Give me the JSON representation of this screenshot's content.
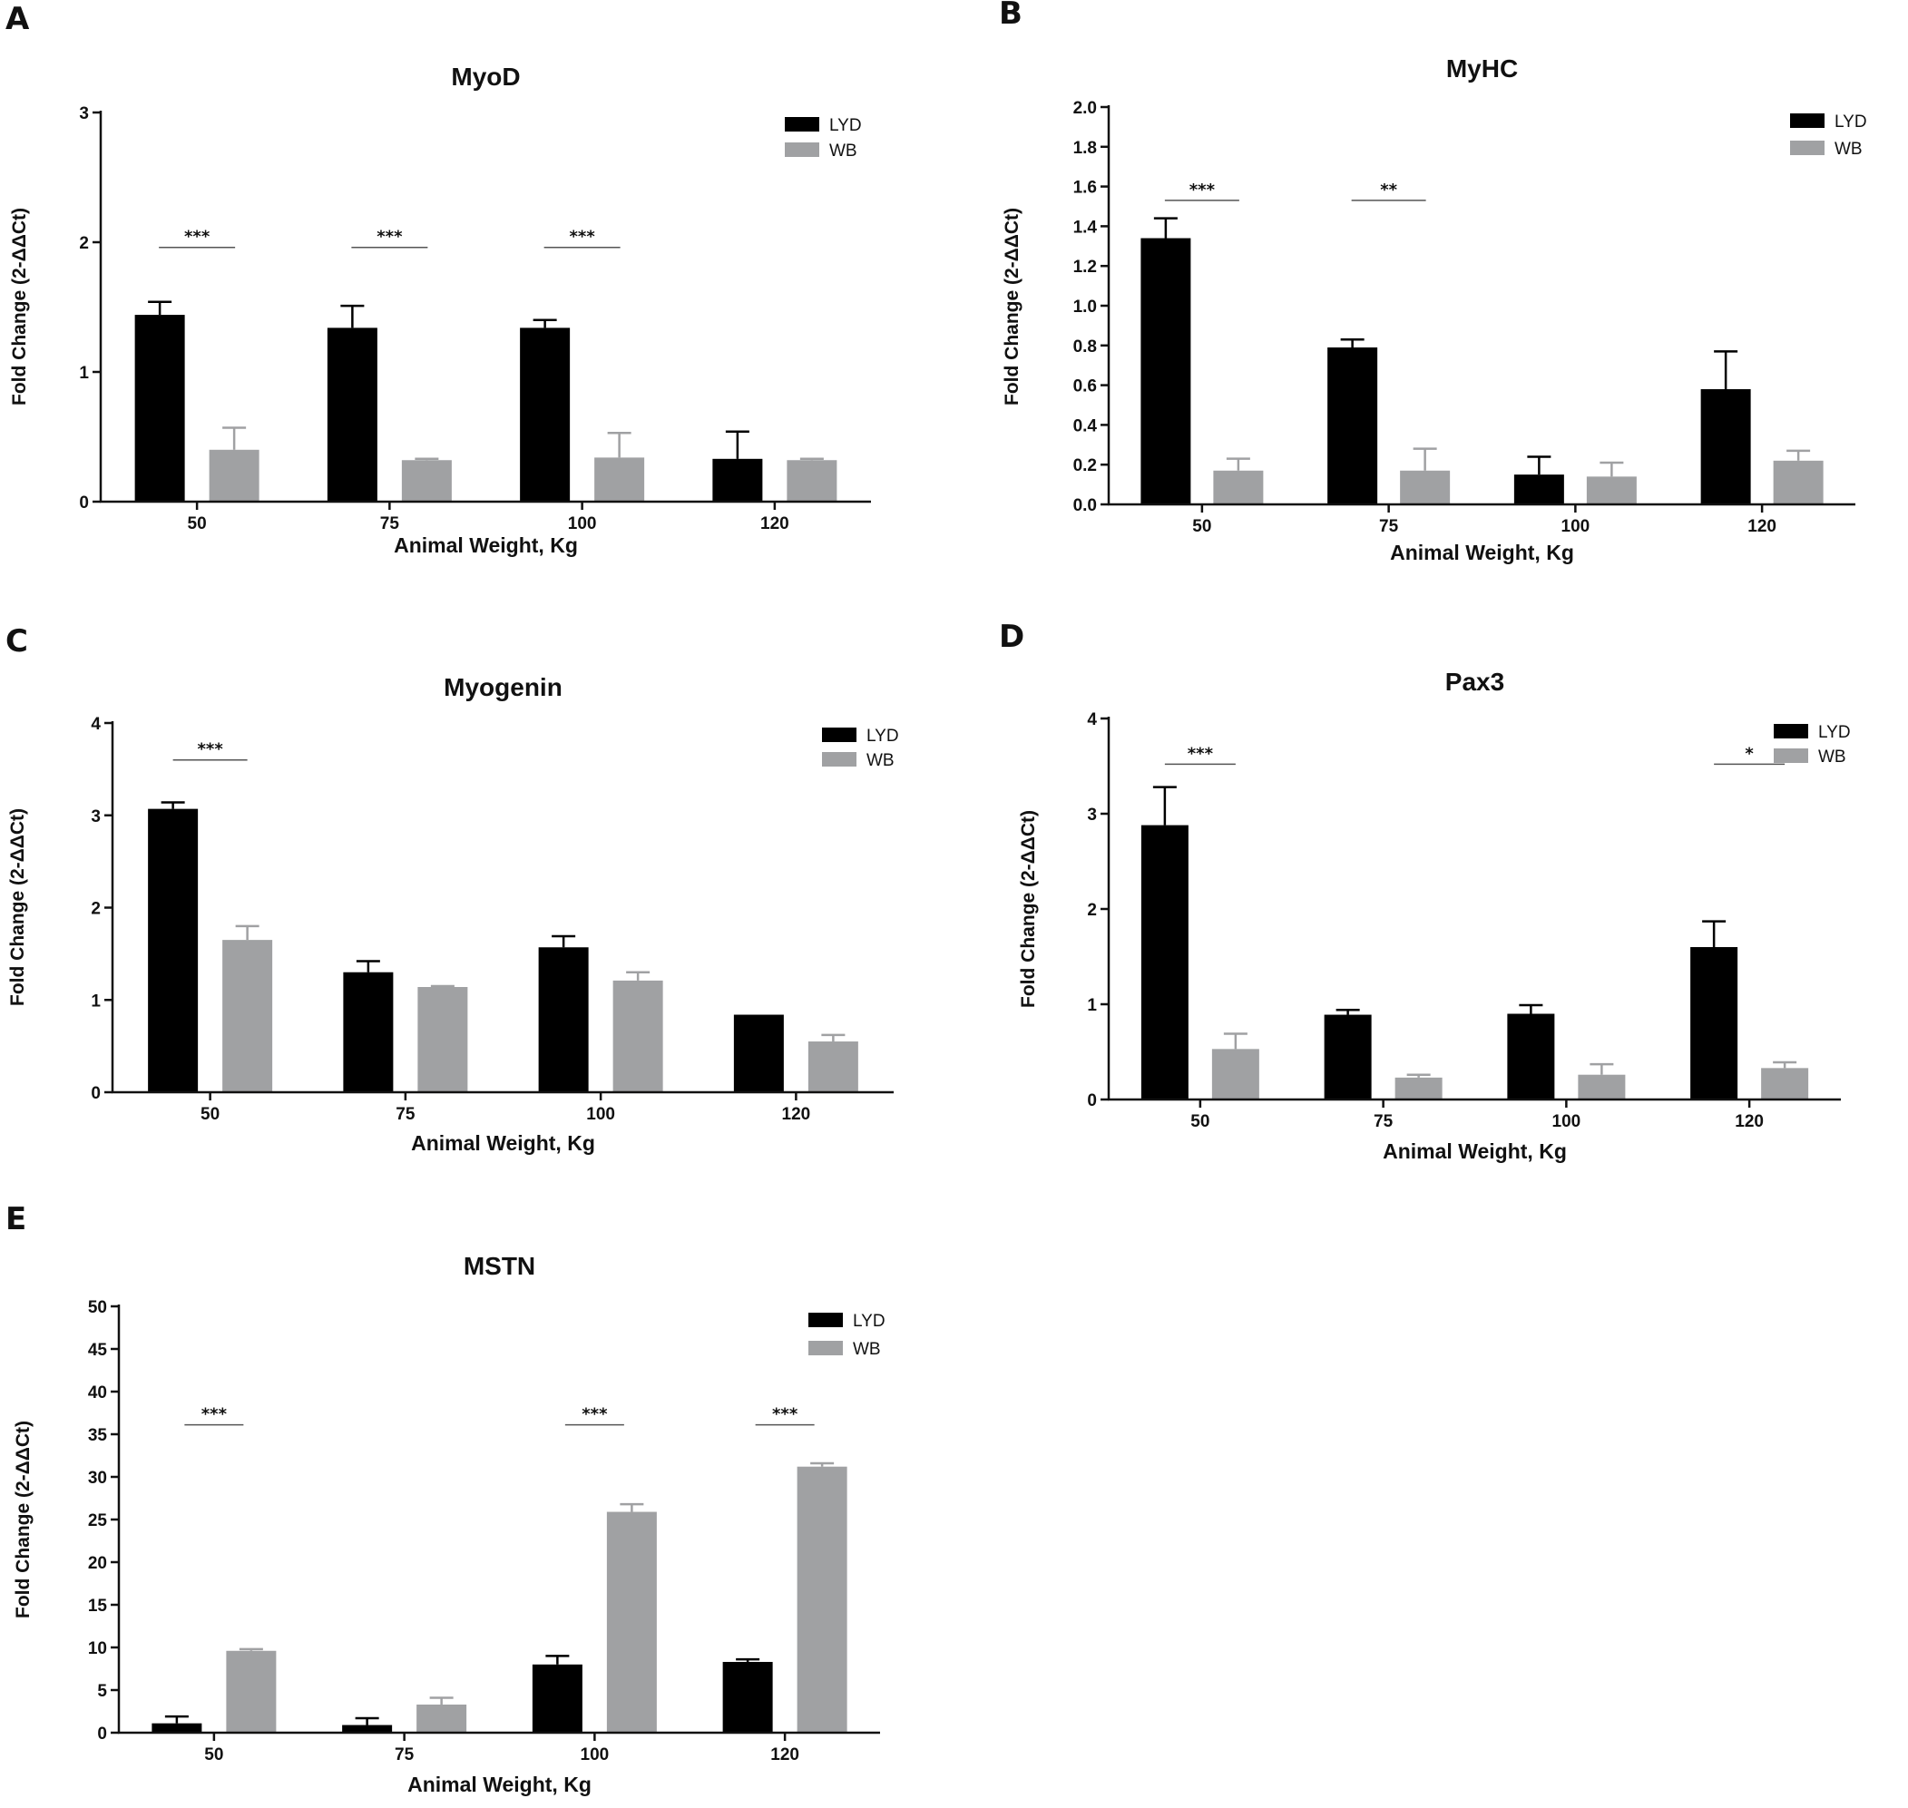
{
  "legend": {
    "LYD": "LYD",
    "WB": "WB"
  },
  "colors": {
    "LYD": "#000000",
    "WB": "#a0a1a3",
    "axis": "#111111"
  },
  "chart_data": [
    {
      "panel": "A",
      "type": "bar",
      "title": "MyoD",
      "xlabel": "Animal  Weight, Kg",
      "ylabel": "Fold Change (2-ΔΔCt)",
      "categories": [
        "50",
        "75",
        "100",
        "120"
      ],
      "ylim": [
        0,
        3
      ],
      "yticks": [
        "0",
        "1",
        "2",
        "3"
      ],
      "series": [
        {
          "name": "LYD",
          "values": [
            1.44,
            1.34,
            1.34,
            0.33
          ],
          "errors": [
            0.1,
            0.17,
            0.06,
            0.21
          ]
        },
        {
          "name": "WB",
          "values": [
            0.4,
            0.32,
            0.34,
            0.32
          ],
          "errors": [
            0.17,
            0.01,
            0.19,
            0.01
          ]
        }
      ],
      "significance": [
        {
          "category": "50",
          "label": "***",
          "y": 1.96
        },
        {
          "category": "75",
          "label": "***",
          "y": 1.96
        },
        {
          "category": "100",
          "label": "***",
          "y": 1.96
        }
      ]
    },
    {
      "panel": "B",
      "type": "bar",
      "title": "MyHC",
      "xlabel": "Animal  Weight, Kg",
      "ylabel": "Fold Change (2-ΔΔCt)",
      "categories": [
        "50",
        "75",
        "100",
        "120"
      ],
      "ylim": [
        0,
        2.0
      ],
      "yticks": [
        "0.0",
        "0.2",
        "0.4",
        "0.6",
        "0.8",
        "1.0",
        "1.2",
        "1.4",
        "1.6",
        "1.8",
        "2.0"
      ],
      "series": [
        {
          "name": "LYD",
          "values": [
            1.34,
            0.79,
            0.15,
            0.58
          ],
          "errors": [
            0.1,
            0.04,
            0.09,
            0.19
          ]
        },
        {
          "name": "WB",
          "values": [
            0.17,
            0.17,
            0.14,
            0.22
          ],
          "errors": [
            0.06,
            0.11,
            0.07,
            0.05
          ]
        }
      ],
      "significance": [
        {
          "category": "50",
          "label": "***",
          "y": 1.53
        },
        {
          "category": "75",
          "label": "**",
          "y": 1.53
        }
      ]
    },
    {
      "panel": "C",
      "type": "bar",
      "title": "Myogenin",
      "xlabel": "Animal  Weight, Kg",
      "ylabel": "Fold Change (2-ΔΔCt)",
      "categories": [
        "50",
        "75",
        "100",
        "120"
      ],
      "ylim": [
        0,
        4
      ],
      "yticks": [
        "0",
        "1",
        "2",
        "3",
        "4"
      ],
      "series": [
        {
          "name": "LYD",
          "values": [
            3.07,
            1.3,
            1.57,
            0.84
          ],
          "errors": [
            0.07,
            0.12,
            0.12,
            0.0
          ]
        },
        {
          "name": "WB",
          "values": [
            1.65,
            1.14,
            1.21,
            0.55
          ],
          "errors": [
            0.15,
            0.01,
            0.09,
            0.07
          ]
        }
      ],
      "significance": [
        {
          "category": "50",
          "label": "***",
          "y": 3.6
        }
      ]
    },
    {
      "panel": "D",
      "type": "bar",
      "title": "Pax3",
      "xlabel": "Animal  Weight, Kg",
      "ylabel": "Fold Change (2-ΔΔCt)",
      "categories": [
        "50",
        "75",
        "100",
        "120"
      ],
      "ylim": [
        0,
        4
      ],
      "yticks": [
        "0",
        "1",
        "2",
        "3",
        "4"
      ],
      "series": [
        {
          "name": "LYD",
          "values": [
            2.88,
            0.89,
            0.9,
            1.6
          ],
          "errors": [
            0.4,
            0.05,
            0.09,
            0.27
          ]
        },
        {
          "name": "WB",
          "values": [
            0.53,
            0.23,
            0.26,
            0.33
          ],
          "errors": [
            0.16,
            0.03,
            0.11,
            0.06
          ]
        }
      ],
      "significance": [
        {
          "category": "50",
          "label": "***",
          "y": 3.52
        },
        {
          "category": "120",
          "label": "*",
          "y": 3.52
        }
      ]
    },
    {
      "panel": "E",
      "type": "bar",
      "title": "MSTN",
      "xlabel": "Animal  Weight, Kg",
      "ylabel": "Fold Change (2-ΔΔCt)",
      "categories": [
        "50",
        "75",
        "100",
        "120"
      ],
      "ylim": [
        0,
        50
      ],
      "yticks": [
        "0",
        "5",
        "10",
        "15",
        "20",
        "25",
        "30",
        "35",
        "40",
        "45",
        "50"
      ],
      "series": [
        {
          "name": "LYD",
          "values": [
            1.1,
            0.9,
            8.0,
            8.3
          ],
          "errors": [
            0.8,
            0.8,
            1.0,
            0.3
          ]
        },
        {
          "name": "WB",
          "values": [
            9.6,
            3.3,
            25.9,
            31.2
          ],
          "errors": [
            0.2,
            0.8,
            0.9,
            0.4
          ]
        }
      ],
      "significance": [
        {
          "category": "50",
          "label": "***",
          "y": 36.1
        },
        {
          "category": "100",
          "label": "***",
          "y": 36.1
        },
        {
          "category": "120",
          "label": "***",
          "y": 36.1
        }
      ]
    }
  ]
}
